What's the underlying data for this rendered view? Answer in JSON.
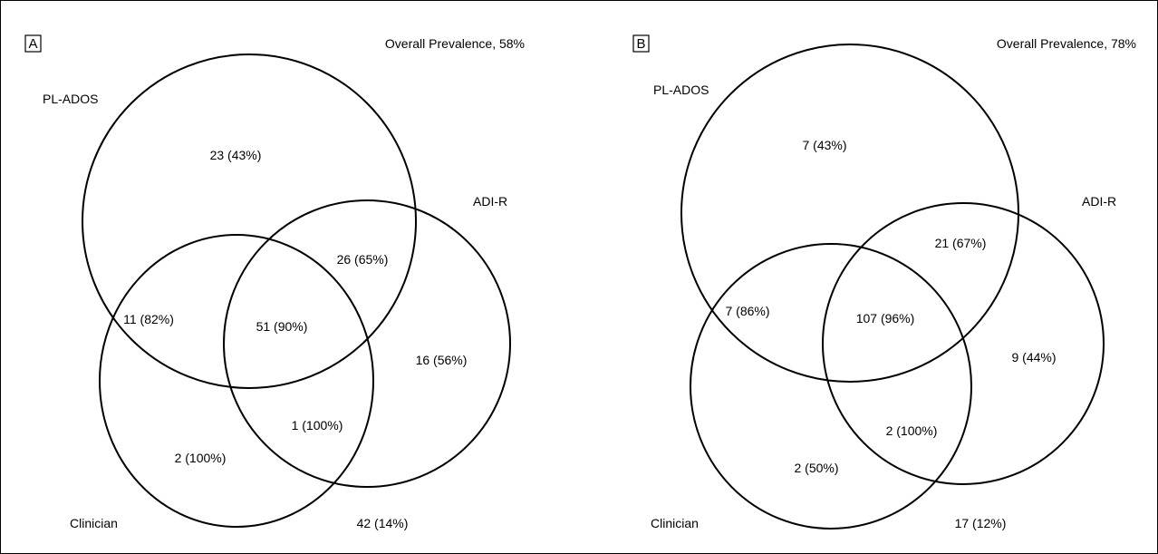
{
  "panels": [
    {
      "letter": "A",
      "prevalence": "Overall Prevalence, 58%",
      "sets": {
        "pl_ados": "PL-ADOS",
        "adi_r": "ADI-R",
        "clinician": "Clinician"
      },
      "regions": {
        "pl_ados_only": "23 (43%)",
        "pl_ados_adi_r": "26 (65%)",
        "pl_ados_clinician": "11 (82%)",
        "all_three": "51 (90%)",
        "adi_r_only": "16 (56%)",
        "adi_r_clinician": "1 (100%)",
        "clinician_only": "2 (100%)",
        "none": "42 (14%)"
      }
    },
    {
      "letter": "B",
      "prevalence": "Overall Prevalence, 78%",
      "sets": {
        "pl_ados": "PL-ADOS",
        "adi_r": "ADI-R",
        "clinician": "Clinician"
      },
      "regions": {
        "pl_ados_only": "7 (43%)",
        "pl_ados_adi_r": "21 (67%)",
        "pl_ados_clinician": "7 (86%)",
        "all_three": "107 (96%)",
        "adi_r_only": "9 (44%)",
        "adi_r_clinician": "2 (100%)",
        "clinician_only": "2 (50%)",
        "none": "17 (12%)"
      }
    }
  ]
}
